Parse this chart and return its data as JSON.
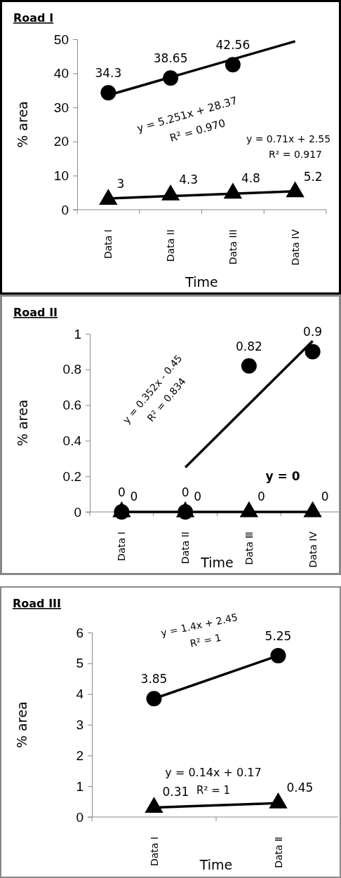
{
  "chart_data": [
    {
      "type": "scatter",
      "title": "Road I",
      "xlabel": "Time",
      "ylabel": "% area",
      "categories": [
        "Data I",
        "Data II",
        "Data III",
        "Data IV"
      ],
      "ylim": [
        0,
        50
      ],
      "yticks": [
        0,
        10,
        20,
        30,
        40,
        50
      ],
      "grid": false,
      "annotations": [
        "y = 5.251x + 28.37",
        "R² = 0.970",
        "y = 0.71x + 2.55",
        "R² = 0.917"
      ],
      "series": [
        {
          "color": "#000000",
          "marker": "triangle",
          "values": [
            3,
            4.3,
            4.8,
            5.2
          ],
          "value_labels": [
            "3",
            "4.3",
            "4.8",
            "5.2"
          ]
        },
        {
          "color": "#000000",
          "marker": "circle",
          "values": [
            34.3,
            38.65,
            42.56,
            null
          ],
          "value_labels": [
            "34.3",
            "38.65",
            "42.56",
            null
          ]
        },
        {
          "type": "line",
          "color": "#000000",
          "marker": "none",
          "values": [
            33.6,
            null,
            null,
            49.4
          ]
        },
        {
          "type": "line",
          "color": "#000000",
          "marker": "none",
          "values": [
            3.3,
            null,
            null,
            5.4
          ]
        }
      ]
    },
    {
      "type": "scatter",
      "title": "Road II",
      "xlabel": "Time",
      "ylabel": "% area",
      "categories": [
        "Data I",
        "Data II",
        "Data Ⅲ",
        "Data IV"
      ],
      "ylim": [
        0,
        1
      ],
      "yticks": [
        0,
        0.2,
        0.4,
        0.6,
        0.8,
        1
      ],
      "grid": false,
      "annotations": [
        "y = 0.352x - 0.45",
        "R² = 0.834",
        "y = 0"
      ],
      "series": [
        {
          "color": "#000000",
          "marker": "triangle",
          "values": [
            0,
            0,
            0,
            0
          ],
          "value_labels": [
            "0",
            "0",
            "0",
            "0"
          ]
        },
        {
          "color": "#000000",
          "marker": "circle",
          "values": [
            0,
            0,
            0.82,
            0.9
          ],
          "value_labels": [
            "0",
            "0",
            "0.82",
            "0.9"
          ]
        },
        {
          "type": "line",
          "color": "#000000",
          "marker": "none",
          "values": [
            null,
            0.25,
            null,
            0.96
          ]
        },
        {
          "type": "line",
          "color": "#000000",
          "marker": "none",
          "values": [
            0,
            null,
            null,
            0
          ]
        }
      ]
    },
    {
      "type": "scatter",
      "title": "Road III",
      "xlabel": "Time",
      "ylabel": "% area",
      "categories": [
        "Data Ⅰ",
        "Data Ⅱ"
      ],
      "ylim": [
        0,
        6
      ],
      "yticks": [
        0,
        1,
        2,
        3,
        4,
        5,
        6
      ],
      "grid": false,
      "annotations": [
        "y = 1.4x + 2.45",
        "R² = 1",
        "y = 0.14x + 0.17",
        "R² = 1"
      ],
      "series": [
        {
          "color": "#000000",
          "marker": "triangle",
          "values": [
            0.31,
            0.45
          ],
          "value_labels": [
            "0.31",
            "0.45"
          ]
        },
        {
          "color": "#000000",
          "marker": "circle",
          "values": [
            3.85,
            5.25
          ],
          "value_labels": [
            "3.85",
            "5.25"
          ]
        },
        {
          "type": "line",
          "color": "#000000",
          "marker": "none",
          "values": [
            3.85,
            5.25
          ]
        },
        {
          "type": "line",
          "color": "#000000",
          "marker": "none",
          "values": [
            0.31,
            0.45
          ]
        }
      ]
    }
  ]
}
